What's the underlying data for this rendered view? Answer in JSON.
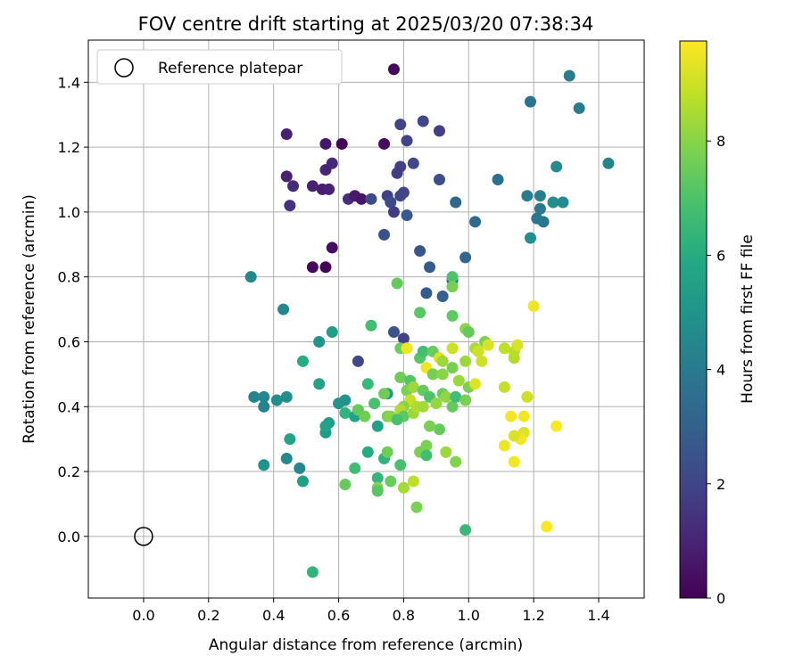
{
  "figure": {
    "title": "FOV centre drift starting at 2025/03/20 07:38:34"
  },
  "chart_data": {
    "type": "scatter",
    "title": "FOV centre drift starting at 2025/03/20 07:38:34",
    "xlabel": "Angular distance from reference (arcmin)",
    "ylabel": "Rotation from reference (arcmin)",
    "xlim": [
      -0.17,
      1.54
    ],
    "ylim": [
      -0.19,
      1.53
    ],
    "x_ticks": [
      0.0,
      0.2,
      0.4,
      0.6,
      0.8,
      1.0,
      1.2,
      1.4
    ],
    "x_tick_labels": [
      "0.0",
      "0.2",
      "0.4",
      "0.6",
      "0.8",
      "1.0",
      "1.2",
      "1.4"
    ],
    "y_ticks": [
      0.0,
      0.2,
      0.4,
      0.6,
      0.8,
      1.0,
      1.2,
      1.4
    ],
    "y_tick_labels": [
      "0.0",
      "0.2",
      "0.4",
      "0.6",
      "0.8",
      "1.0",
      "1.2",
      "1.4"
    ],
    "grid": true,
    "legend": {
      "placement": "upper-left",
      "entries": [
        "Reference platepar"
      ]
    },
    "reference_point": {
      "x": 0.0,
      "y": 0.0,
      "label": "Reference platepar"
    },
    "colorbar": {
      "label": "Hours from first FF file",
      "range": [
        0,
        9.75
      ],
      "ticks": [
        0,
        2,
        4,
        6,
        8
      ],
      "tick_labels": [
        "0",
        "2",
        "4",
        "6",
        "8"
      ],
      "colormap": "viridis"
    },
    "points": [
      [
        0.77,
        1.44,
        0.2
      ],
      [
        0.44,
        1.24,
        0.9
      ],
      [
        0.56,
        1.21,
        0.6
      ],
      [
        0.61,
        1.21,
        0.1
      ],
      [
        0.74,
        1.21,
        0.3
      ],
      [
        0.58,
        1.15,
        1.1
      ],
      [
        0.56,
        1.13,
        1.0
      ],
      [
        0.44,
        1.11,
        0.9
      ],
      [
        0.46,
        1.08,
        1.2
      ],
      [
        0.52,
        1.08,
        0.9
      ],
      [
        0.55,
        1.07,
        0.8
      ],
      [
        0.57,
        1.07,
        0.9
      ],
      [
        0.63,
        1.04,
        1.3
      ],
      [
        0.65,
        1.05,
        0.7
      ],
      [
        0.67,
        1.04,
        0.6
      ],
      [
        0.45,
        1.02,
        1.4
      ],
      [
        0.58,
        0.89,
        0.4
      ],
      [
        0.52,
        0.83,
        0.2
      ],
      [
        0.56,
        0.83,
        0.1
      ],
      [
        0.79,
        1.27,
        2.0
      ],
      [
        0.86,
        1.28,
        2.1
      ],
      [
        0.91,
        1.25,
        1.8
      ],
      [
        0.81,
        1.22,
        2.0
      ],
      [
        0.79,
        1.14,
        1.8
      ],
      [
        0.78,
        1.12,
        1.7
      ],
      [
        0.83,
        1.15,
        2.1
      ],
      [
        0.91,
        1.1,
        2.4
      ],
      [
        0.75,
        1.05,
        1.9
      ],
      [
        0.76,
        1.03,
        2.2
      ],
      [
        0.79,
        1.05,
        2.0
      ],
      [
        0.8,
        1.06,
        2.0
      ],
      [
        0.7,
        1.04,
        2.2
      ],
      [
        0.77,
        1.0,
        1.7
      ],
      [
        0.81,
        0.99,
        2.7
      ],
      [
        0.74,
        0.93,
        2.4
      ],
      [
        0.85,
        0.88,
        2.6
      ],
      [
        0.88,
        0.83,
        2.8
      ],
      [
        0.87,
        0.75,
        2.8
      ],
      [
        0.92,
        0.74,
        3.0
      ],
      [
        0.95,
        0.79,
        3.0
      ],
      [
        0.99,
        0.86,
        3.2
      ],
      [
        0.96,
        1.03,
        3.3
      ],
      [
        1.02,
        0.97,
        3.3
      ],
      [
        1.09,
        1.1,
        3.6
      ],
      [
        1.19,
        1.34,
        3.7
      ],
      [
        1.31,
        1.42,
        4.0
      ],
      [
        1.34,
        1.32,
        4.0
      ],
      [
        1.43,
        1.15,
        4.4
      ],
      [
        1.27,
        1.14,
        4.6
      ],
      [
        1.18,
        1.05,
        4.0
      ],
      [
        1.22,
        1.05,
        4.1
      ],
      [
        1.22,
        1.01,
        3.9
      ],
      [
        1.21,
        0.98,
        3.8
      ],
      [
        1.23,
        0.97,
        3.8
      ],
      [
        1.26,
        1.03,
        4.8
      ],
      [
        1.29,
        1.03,
        4.6
      ],
      [
        1.19,
        0.92,
        4.8
      ],
      [
        0.77,
        0.63,
        2.5
      ],
      [
        0.8,
        0.61,
        1.9
      ],
      [
        0.66,
        0.54,
        2.1
      ],
      [
        0.33,
        0.8,
        4.5
      ],
      [
        0.43,
        0.7,
        4.5
      ],
      [
        0.54,
        0.6,
        5.0
      ],
      [
        0.58,
        0.63,
        5.5
      ],
      [
        0.49,
        0.54,
        6.0
      ],
      [
        0.34,
        0.43,
        4.4
      ],
      [
        0.37,
        0.43,
        4.5
      ],
      [
        0.37,
        0.4,
        4.3
      ],
      [
        0.41,
        0.42,
        4.8
      ],
      [
        0.44,
        0.43,
        4.8
      ],
      [
        0.44,
        0.24,
        4.6
      ],
      [
        0.37,
        0.22,
        4.9
      ],
      [
        0.48,
        0.21,
        4.5
      ],
      [
        0.49,
        0.17,
        5.5
      ],
      [
        0.45,
        0.3,
        5.6
      ],
      [
        0.54,
        0.47,
        5.6
      ],
      [
        0.56,
        0.32,
        5.3
      ],
      [
        0.57,
        0.35,
        5.4
      ],
      [
        0.6,
        0.41,
        5.0
      ],
      [
        0.62,
        0.42,
        5.0
      ],
      [
        0.62,
        0.38,
        6.3
      ],
      [
        0.65,
        0.37,
        5.6
      ],
      [
        0.69,
        0.26,
        6.0
      ],
      [
        0.72,
        0.34,
        5.5
      ],
      [
        0.75,
        0.44,
        5.1
      ],
      [
        0.65,
        0.21,
        6.7
      ],
      [
        0.72,
        0.18,
        6.4
      ],
      [
        0.52,
        -0.11,
        6.3
      ],
      [
        0.69,
        0.47,
        6.5
      ],
      [
        0.71,
        0.41,
        6.9
      ],
      [
        0.74,
        0.44,
        7.6
      ],
      [
        0.74,
        0.24,
        6.3
      ],
      [
        0.75,
        0.26,
        7.6
      ],
      [
        0.62,
        0.16,
        7.4
      ],
      [
        0.72,
        0.15,
        7.9
      ],
      [
        0.72,
        0.14,
        7.2
      ],
      [
        0.76,
        0.17,
        7.5
      ],
      [
        0.79,
        0.22,
        6.9
      ],
      [
        0.8,
        0.15,
        8.4
      ],
      [
        0.83,
        0.17,
        8.8
      ],
      [
        0.84,
        0.09,
        7.8
      ],
      [
        0.85,
        0.26,
        7.8
      ],
      [
        0.87,
        0.28,
        7.8
      ],
      [
        0.87,
        0.25,
        6.8
      ],
      [
        0.91,
        0.33,
        7.4
      ],
      [
        0.93,
        0.26,
        8.3
      ],
      [
        0.96,
        0.23,
        7.9
      ],
      [
        0.99,
        0.02,
        6.5
      ],
      [
        0.7,
        0.65,
        6.8
      ],
      [
        0.78,
        0.78,
        7.4
      ],
      [
        0.85,
        0.69,
        7.2
      ],
      [
        0.95,
        0.8,
        7.0
      ],
      [
        0.95,
        0.77,
        7.7
      ],
      [
        0.95,
        0.68,
        7.3
      ],
      [
        0.99,
        0.64,
        8.0
      ],
      [
        1.0,
        0.63,
        7.4
      ],
      [
        0.79,
        0.58,
        7.6
      ],
      [
        0.81,
        0.58,
        9.5
      ],
      [
        0.85,
        0.55,
        7.2
      ],
      [
        0.86,
        0.57,
        6.8
      ],
      [
        0.89,
        0.57,
        7.5
      ],
      [
        0.91,
        0.55,
        9.2
      ],
      [
        0.92,
        0.54,
        8.3
      ],
      [
        0.87,
        0.52,
        9.5
      ],
      [
        0.89,
        0.5,
        7.7
      ],
      [
        0.92,
        0.5,
        8.0
      ],
      [
        0.95,
        0.52,
        7.7
      ],
      [
        0.95,
        0.58,
        9.0
      ],
      [
        0.97,
        0.48,
        8.3
      ],
      [
        0.99,
        0.54,
        8.3
      ],
      [
        1.02,
        0.58,
        8.5
      ],
      [
        1.03,
        0.57,
        9.0
      ],
      [
        1.04,
        0.54,
        9.0
      ],
      [
        1.05,
        0.6,
        7.9
      ],
      [
        1.06,
        0.59,
        9.2
      ],
      [
        1.11,
        0.58,
        8.8
      ],
      [
        0.79,
        0.49,
        7.6
      ],
      [
        0.82,
        0.48,
        7.1
      ],
      [
        0.81,
        0.45,
        7.8
      ],
      [
        0.83,
        0.46,
        8.3
      ],
      [
        0.82,
        0.42,
        8.9
      ],
      [
        0.8,
        0.4,
        8.0
      ],
      [
        0.79,
        0.39,
        8.6
      ],
      [
        0.8,
        0.37,
        7.3
      ],
      [
        0.75,
        0.37,
        7.8
      ],
      [
        0.76,
        0.37,
        8.0
      ],
      [
        0.78,
        0.36,
        6.9
      ],
      [
        0.83,
        0.38,
        8.3
      ],
      [
        0.84,
        0.4,
        8.6
      ],
      [
        0.86,
        0.4,
        8.4
      ],
      [
        0.86,
        0.45,
        7.4
      ],
      [
        0.88,
        0.43,
        7.0
      ],
      [
        0.9,
        0.41,
        8.2
      ],
      [
        0.92,
        0.44,
        7.5
      ],
      [
        0.93,
        0.43,
        8.1
      ],
      [
        0.95,
        0.4,
        7.4
      ],
      [
        0.96,
        0.43,
        6.7
      ],
      [
        0.99,
        0.42,
        7.8
      ],
      [
        1.0,
        0.46,
        7.8
      ],
      [
        1.02,
        0.47,
        9.3
      ],
      [
        0.88,
        0.34,
        7.8
      ],
      [
        0.68,
        0.37,
        7.6
      ],
      [
        0.66,
        0.39,
        7.4
      ],
      [
        0.56,
        0.34,
        5.6
      ],
      [
        1.11,
        0.46,
        8.9
      ],
      [
        1.14,
        0.55,
        8.6
      ],
      [
        1.14,
        0.57,
        8.7
      ],
      [
        1.15,
        0.59,
        9.2
      ],
      [
        1.2,
        0.71,
        9.5
      ],
      [
        1.18,
        0.43,
        9.0
      ],
      [
        1.13,
        0.37,
        9.6
      ],
      [
        1.17,
        0.37,
        9.6
      ],
      [
        1.17,
        0.32,
        9.3
      ],
      [
        1.16,
        0.3,
        9.6
      ],
      [
        1.14,
        0.31,
        9.2
      ],
      [
        1.11,
        0.28,
        9.5
      ],
      [
        1.14,
        0.23,
        9.6
      ],
      [
        1.27,
        0.34,
        9.7
      ],
      [
        1.24,
        0.03,
        9.7
      ]
    ]
  }
}
